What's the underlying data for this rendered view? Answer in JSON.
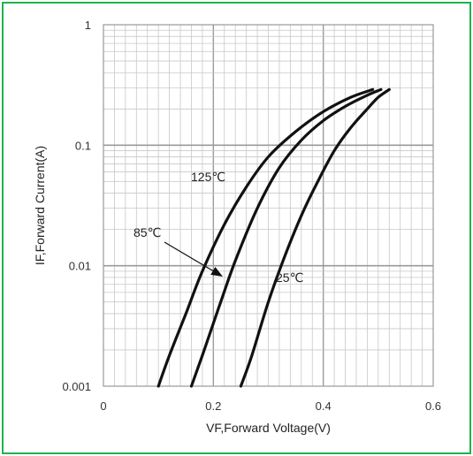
{
  "frame": {
    "border_color": "#22b24c"
  },
  "chart_data": {
    "type": "line",
    "title": "",
    "xlabel": "VF,Forward Voltage(V)",
    "ylabel": "IF,Forward Current(A)",
    "xlim": [
      0,
      0.6
    ],
    "ylim": [
      0.001,
      1
    ],
    "yscale": "log",
    "grid": true,
    "x_ticks": [
      "0",
      "0.2",
      "0.4",
      "0.6"
    ],
    "y_ticks": [
      "0.001",
      "0.01",
      "0.1",
      "1"
    ],
    "series": [
      {
        "name": "125℃",
        "x": [
          0.1,
          0.12,
          0.15,
          0.18,
          0.22,
          0.26,
          0.3,
          0.35,
          0.4,
          0.45,
          0.49
        ],
        "y": [
          0.001,
          0.0018,
          0.004,
          0.009,
          0.022,
          0.045,
          0.08,
          0.13,
          0.19,
          0.25,
          0.29
        ]
      },
      {
        "name": "85℃",
        "x": [
          0.16,
          0.18,
          0.21,
          0.24,
          0.28,
          0.32,
          0.36,
          0.4,
          0.44,
          0.48,
          0.505
        ],
        "y": [
          0.001,
          0.0018,
          0.0045,
          0.011,
          0.03,
          0.065,
          0.11,
          0.16,
          0.21,
          0.26,
          0.29
        ]
      },
      {
        "name": "25℃",
        "x": [
          0.25,
          0.27,
          0.3,
          0.33,
          0.36,
          0.39,
          0.42,
          0.45,
          0.48,
          0.5,
          0.52
        ],
        "y": [
          0.001,
          0.0018,
          0.005,
          0.012,
          0.026,
          0.05,
          0.09,
          0.14,
          0.2,
          0.25,
          0.29
        ]
      }
    ],
    "annotations": [
      {
        "text": "125℃",
        "series": "125℃"
      },
      {
        "text": "85℃",
        "series": "85℃",
        "arrow": true,
        "arrow_to": {
          "x": 0.225,
          "y": 0.0078
        }
      },
      {
        "text": "25℃",
        "series": "25℃"
      }
    ]
  }
}
